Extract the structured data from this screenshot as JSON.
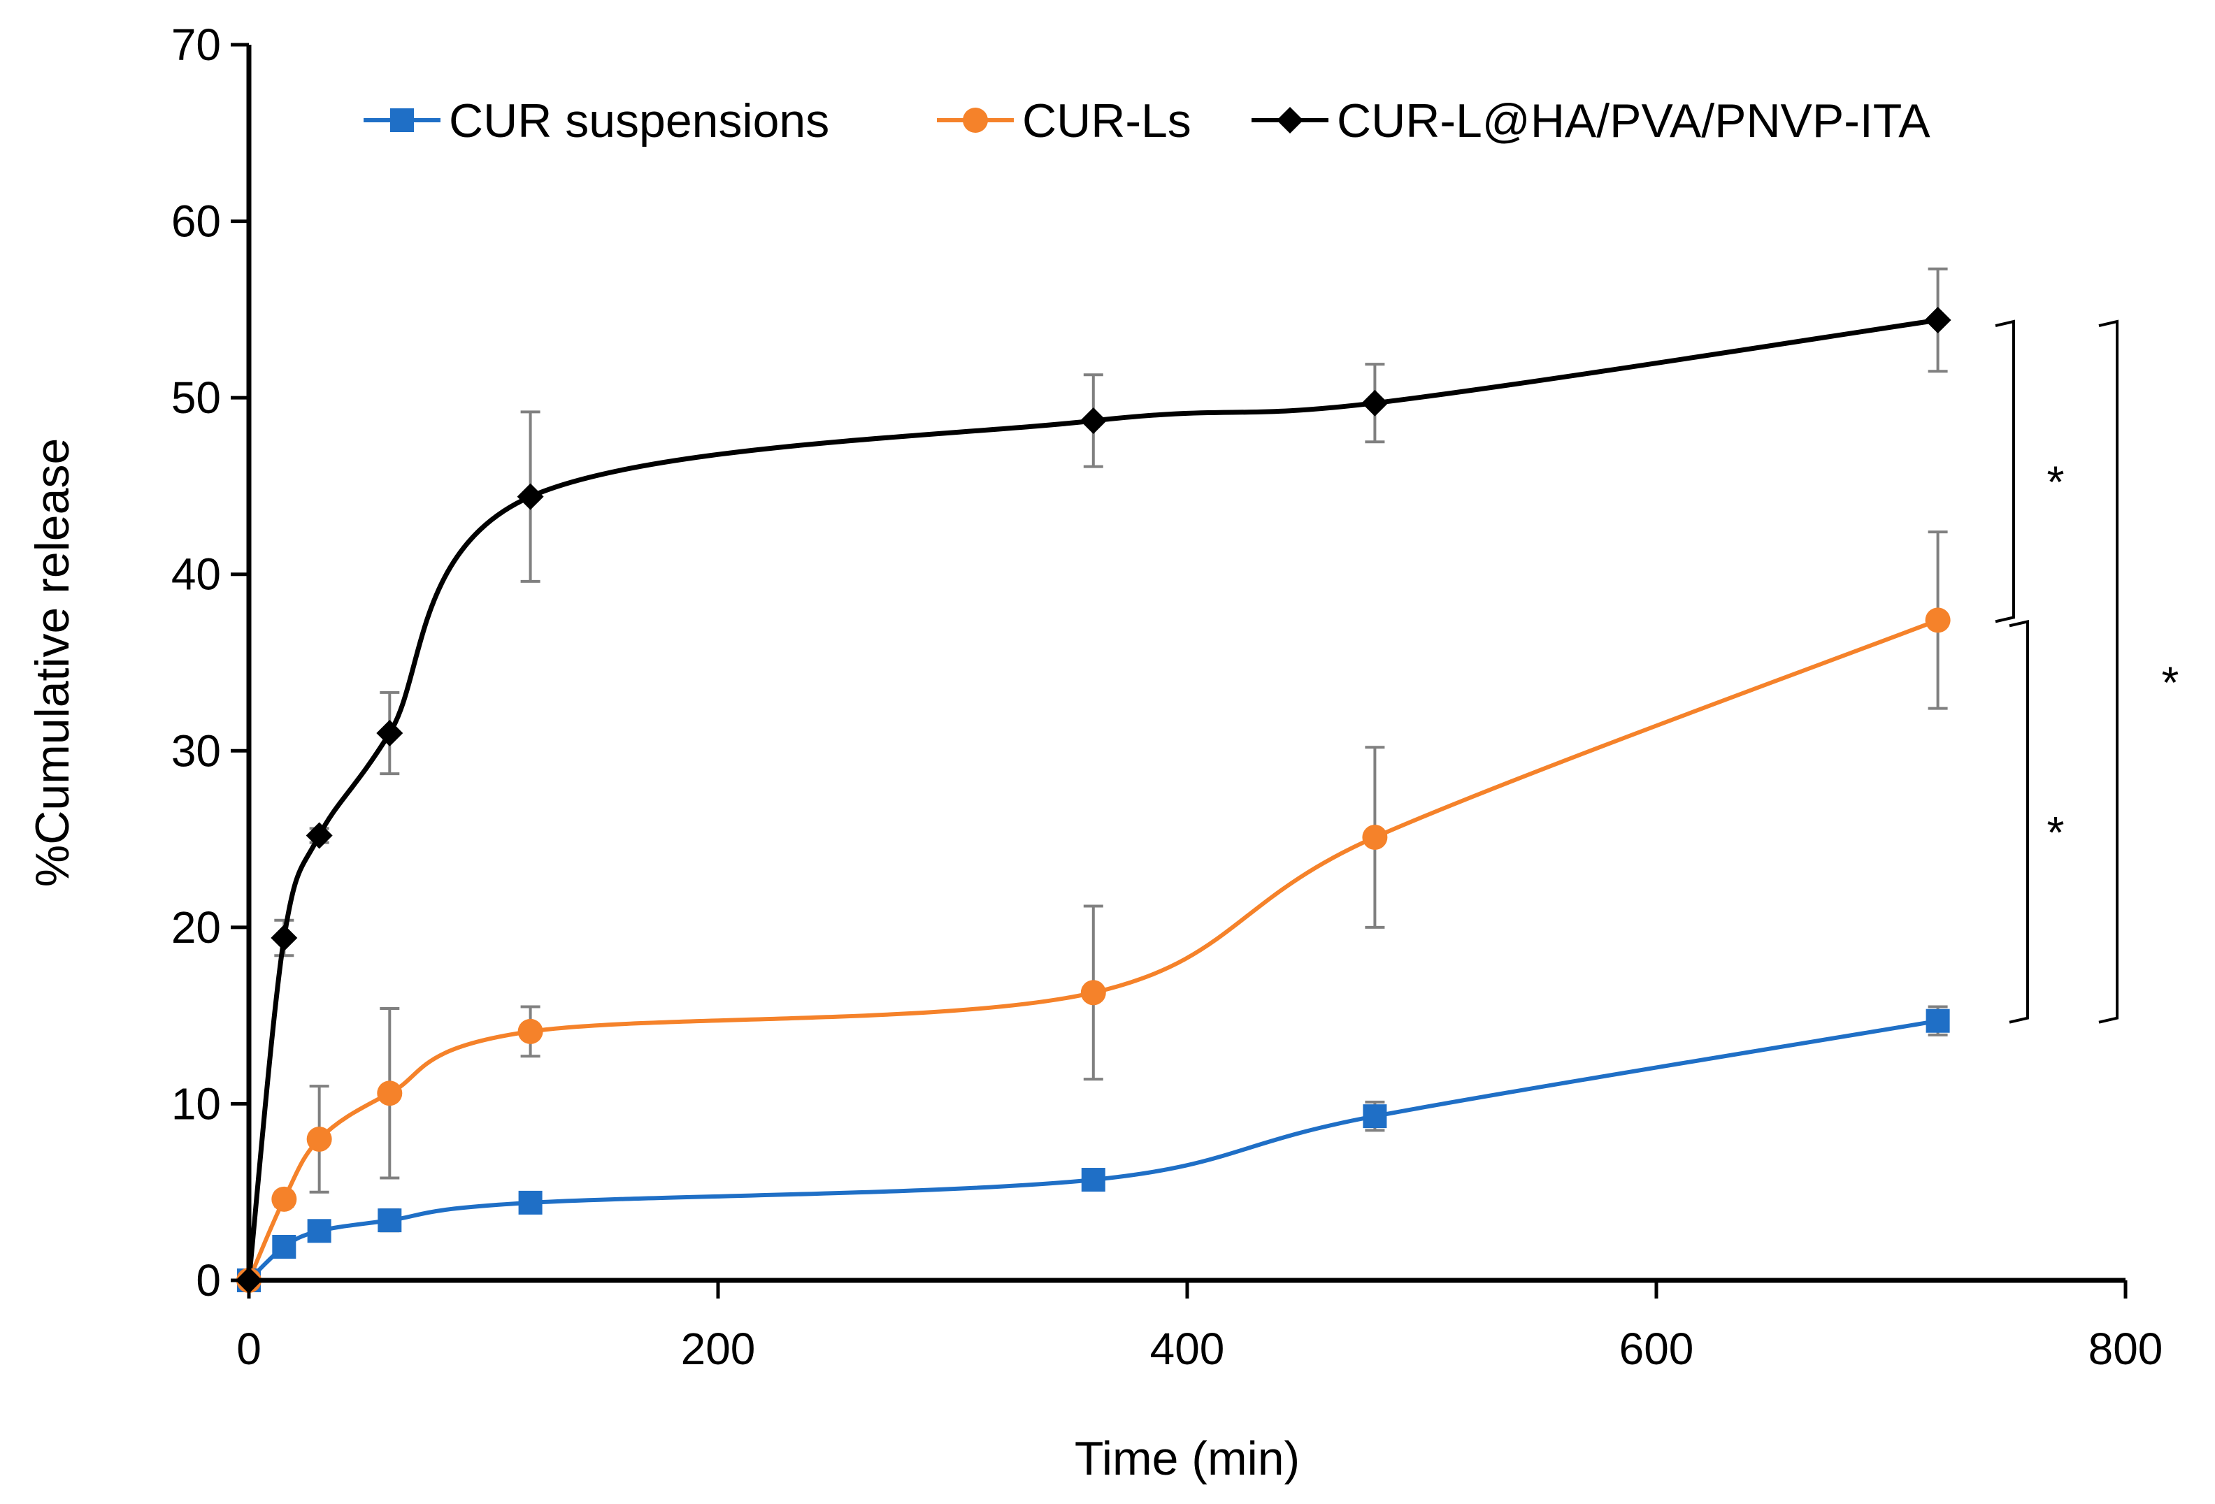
{
  "chart_data": {
    "type": "line",
    "title": "",
    "xlabel": "Time (min)",
    "ylabel": "%Cumulative release",
    "xlim": [
      0,
      800
    ],
    "ylim": [
      0,
      70
    ],
    "xticks": [
      0,
      200,
      400,
      600,
      800
    ],
    "yticks": [
      0,
      10,
      20,
      30,
      40,
      50,
      60,
      70
    ],
    "grid": false,
    "legend_position": "top",
    "series": [
      {
        "name": "CUR suspensions",
        "color": "#1f6fc6",
        "marker": "square",
        "x": [
          0,
          15,
          30,
          60,
          120,
          360,
          480,
          720
        ],
        "y": [
          0,
          1.9,
          2.8,
          3.4,
          4.4,
          5.7,
          9.3,
          14.7
        ],
        "err": [
          0,
          0.5,
          0.4,
          0.6,
          0.4,
          0.5,
          0.8,
          0.8
        ]
      },
      {
        "name": "CUR-Ls",
        "color": "#f5822a",
        "marker": "circle",
        "x": [
          0,
          15,
          30,
          60,
          120,
          360,
          480,
          720
        ],
        "y": [
          0,
          4.6,
          8.0,
          10.6,
          14.1,
          16.3,
          25.1,
          37.4
        ],
        "err": [
          0,
          0.4,
          3.0,
          4.8,
          1.4,
          4.9,
          5.1,
          5.0
        ]
      },
      {
        "name": "CUR-L@HA/PVA/PNVP-ITA",
        "color": "#000000",
        "marker": "diamond",
        "x": [
          0,
          15,
          30,
          60,
          120,
          360,
          480,
          720
        ],
        "y": [
          0,
          19.4,
          25.2,
          31.0,
          44.4,
          48.7,
          49.7,
          54.4
        ],
        "err": [
          0,
          1.0,
          0.4,
          2.3,
          4.8,
          2.6,
          2.2,
          2.9
        ]
      }
    ],
    "significance": [
      {
        "label": "*",
        "between": [
          "CUR-L@HA/PVA/PNVP-ITA",
          "CUR-Ls"
        ]
      },
      {
        "label": "*",
        "between": [
          "CUR-Ls",
          "CUR suspensions"
        ]
      },
      {
        "label": "*",
        "between": [
          "CUR-L@HA/PVA/PNVP-ITA",
          "CUR suspensions"
        ]
      }
    ]
  }
}
